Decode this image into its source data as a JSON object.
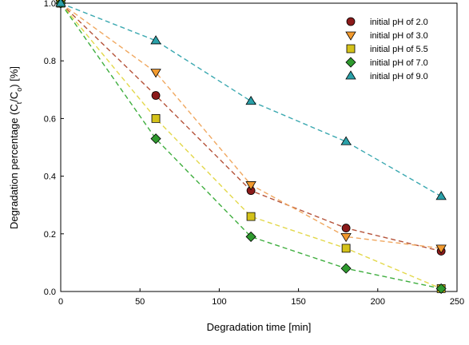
{
  "chart_data": {
    "type": "scatter",
    "title": "",
    "xlabel": "Degradation time [min]",
    "ylabel": {
      "prefix": "Degradation percentage (C",
      "sub1": "t",
      "mid": "/C",
      "sub2": "o",
      "suffix": ") [%]"
    },
    "xlim": [
      0,
      250
    ],
    "ylim": [
      0.0,
      1.0
    ],
    "xticks": [
      "0",
      "50",
      "100",
      "150",
      "200",
      "250"
    ],
    "yticks": [
      "0.0",
      "0.2",
      "0.4",
      "0.6",
      "0.8",
      "1.0"
    ],
    "grid": false,
    "legend_position": "top-right",
    "x": [
      0,
      60,
      120,
      180,
      240
    ],
    "series": [
      {
        "name": "initial pH of 2.0",
        "marker": "circle",
        "color": "#8b1a1a",
        "line_color": "#b5533a",
        "values": [
          1.0,
          0.68,
          0.35,
          0.22,
          0.14
        ]
      },
      {
        "name": "initial pH of 3.0",
        "marker": "triangle-down",
        "color": "#f29a2e",
        "line_color": "#f0a860",
        "values": [
          1.0,
          0.76,
          0.37,
          0.19,
          0.15
        ]
      },
      {
        "name": "initial pH of 5.5",
        "marker": "square",
        "color": "#d4c21a",
        "line_color": "#e3d84a",
        "values": [
          1.0,
          0.6,
          0.26,
          0.15,
          0.01
        ]
      },
      {
        "name": "initial pH of 7.0",
        "marker": "diamond",
        "color": "#2e9a2e",
        "line_color": "#3fae3f",
        "values": [
          1.0,
          0.53,
          0.19,
          0.08,
          0.01
        ]
      },
      {
        "name": "initial pH of 9.0",
        "marker": "triangle-up",
        "color": "#2aa0a8",
        "line_color": "#3aa8b0",
        "values": [
          1.0,
          0.87,
          0.66,
          0.52,
          0.33
        ]
      }
    ]
  }
}
